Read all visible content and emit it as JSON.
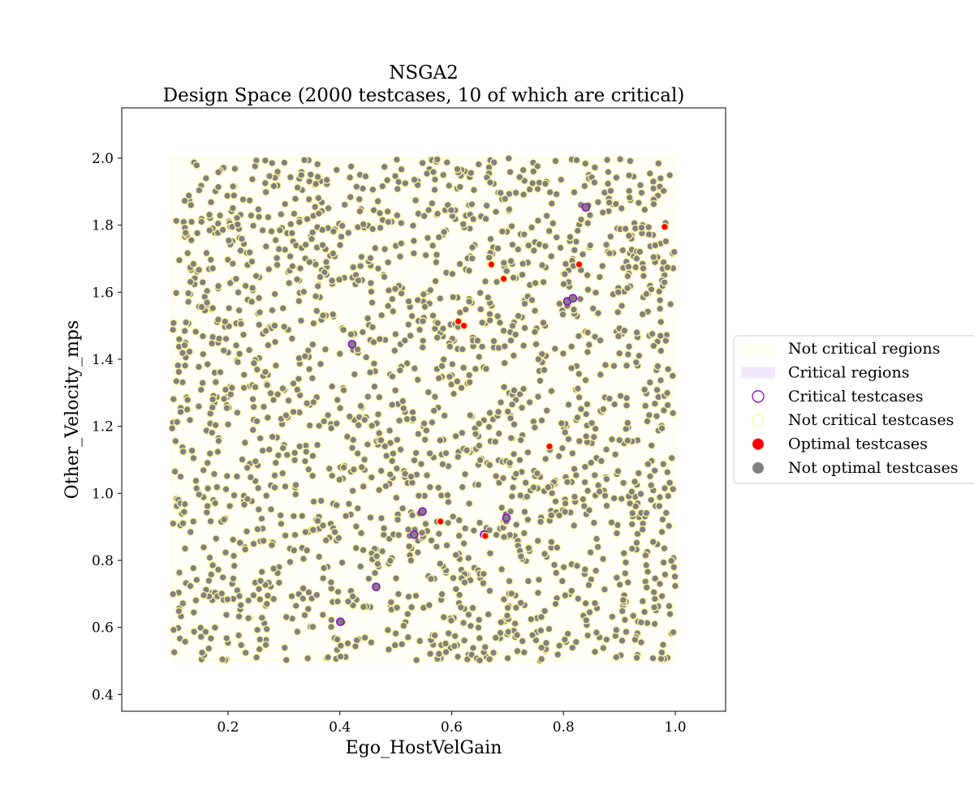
{
  "chart_data": {
    "type": "scatter",
    "title": "NSGA2",
    "subtitle": "Design Space (2000 testcases, 10 of which are critical)",
    "xlabel": "Ego_HostVelGain",
    "ylabel": "Other_Velocity_mps",
    "xlim": [
      0.01,
      1.09
    ],
    "ylim": [
      0.35,
      2.15
    ],
    "xticks": [
      "0.2",
      "0.4",
      "0.6",
      "0.8",
      "1.0"
    ],
    "yticks": [
      "0.4",
      "0.6",
      "0.8",
      "1.0",
      "1.2",
      "1.4",
      "1.6",
      "1.8",
      "2.0"
    ],
    "grid": false,
    "legend_placement": "right, outside plot",
    "legend": [
      {
        "label": "Not critical regions",
        "marker": "patch",
        "color": "#fffff0"
      },
      {
        "label": "Critical regions",
        "marker": "patch",
        "color": "#f3e8fb"
      },
      {
        "label": "Critical testcases",
        "marker": "open-circle",
        "color": "#8e00d0"
      },
      {
        "label": "Not critical testcases",
        "marker": "open-circle",
        "color": "#fff6a0"
      },
      {
        "label": "Optimal testcases",
        "marker": "filled-circle",
        "color": "#ff0000"
      },
      {
        "label": "Not optimal testcases",
        "marker": "filled-circle",
        "color": "#808080"
      }
    ],
    "not_critical_region": {
      "x": [
        0.1,
        1.0
      ],
      "y": [
        0.5,
        2.0
      ]
    },
    "background_points": {
      "count": 1990,
      "distribution": "uniform over region",
      "fill": "#808080",
      "edge": "#fff6a0"
    },
    "critical_points": {
      "x": [
        0.401,
        0.422,
        0.465,
        0.533,
        0.548,
        0.658,
        0.698,
        0.807,
        0.817,
        0.84
      ],
      "y": [
        0.617,
        1.445,
        0.721,
        0.877,
        0.946,
        0.877,
        0.927,
        1.573,
        1.582,
        1.853
      ],
      "fill": "#808080",
      "edge": "#8e00d0"
    },
    "optimal_points": {
      "x": [
        0.58,
        0.612,
        0.622,
        0.66,
        0.671,
        0.693,
        0.775,
        0.828,
        0.981
      ],
      "y": [
        0.916,
        1.513,
        1.5,
        0.873,
        1.683,
        1.64,
        1.14,
        1.683,
        1.795
      ],
      "fill": "#ff0000",
      "edge": "#fff6a0"
    }
  }
}
